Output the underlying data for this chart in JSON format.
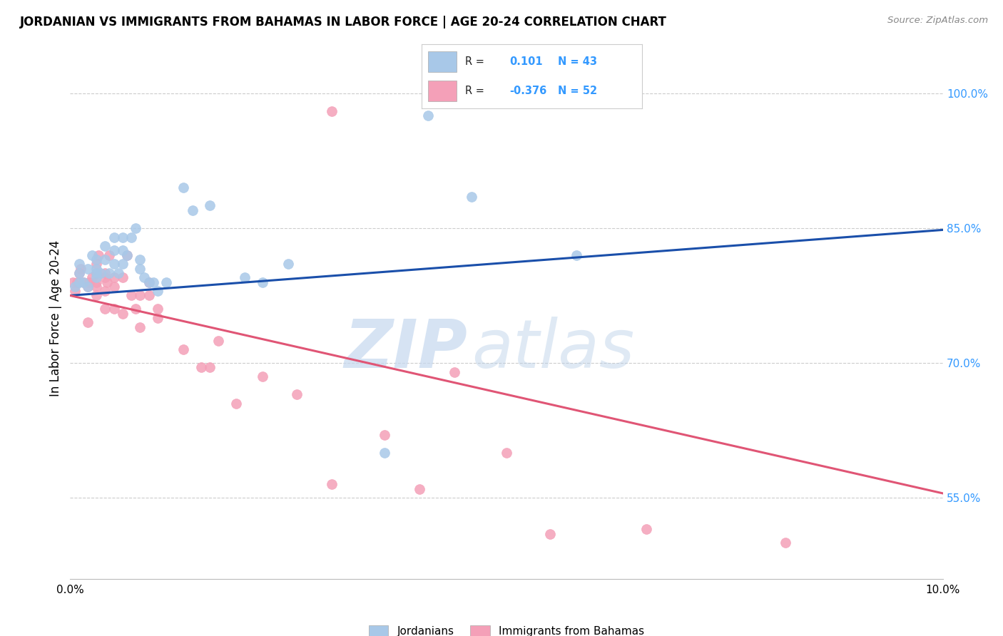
{
  "title": "JORDANIAN VS IMMIGRANTS FROM BAHAMAS IN LABOR FORCE | AGE 20-24 CORRELATION CHART",
  "source": "Source: ZipAtlas.com",
  "ylabel": "In Labor Force | Age 20-24",
  "xlim": [
    0.0,
    0.1
  ],
  "ylim": [
    0.46,
    1.04
  ],
  "yticks": [
    0.55,
    0.7,
    0.85,
    1.0
  ],
  "ytick_labels": [
    "55.0%",
    "70.0%",
    "85.0%",
    "100.0%"
  ],
  "xticks": [
    0.0,
    0.02,
    0.04,
    0.06,
    0.08,
    0.1
  ],
  "xtick_labels": [
    "0.0%",
    "",
    "",
    "",
    "",
    "10.0%"
  ],
  "r_jordanian": 0.101,
  "n_jordanian": 43,
  "r_bahamas": -0.376,
  "n_bahamas": 52,
  "jordanian_color": "#a8c8e8",
  "bahamas_color": "#f4a0b8",
  "trend_jordanian_color": "#1a4faa",
  "trend_bahamas_color": "#e05575",
  "jordanian_x": [
    0.0005,
    0.001,
    0.001,
    0.001,
    0.0015,
    0.002,
    0.002,
    0.0025,
    0.003,
    0.003,
    0.003,
    0.003,
    0.0035,
    0.004,
    0.004,
    0.0045,
    0.005,
    0.005,
    0.005,
    0.0055,
    0.006,
    0.006,
    0.006,
    0.0065,
    0.007,
    0.0075,
    0.008,
    0.008,
    0.0085,
    0.009,
    0.0095,
    0.01,
    0.011,
    0.013,
    0.014,
    0.016,
    0.02,
    0.022,
    0.025,
    0.036,
    0.041,
    0.046,
    0.058
  ],
  "jordanian_y": [
    0.785,
    0.79,
    0.8,
    0.81,
    0.79,
    0.785,
    0.805,
    0.82,
    0.795,
    0.8,
    0.805,
    0.815,
    0.8,
    0.815,
    0.83,
    0.8,
    0.81,
    0.825,
    0.84,
    0.8,
    0.81,
    0.825,
    0.84,
    0.82,
    0.84,
    0.85,
    0.805,
    0.815,
    0.795,
    0.79,
    0.79,
    0.78,
    0.79,
    0.895,
    0.87,
    0.875,
    0.795,
    0.79,
    0.81,
    0.6,
    0.975,
    0.885,
    0.82
  ],
  "bahamas_x": [
    0.0003,
    0.0005,
    0.0008,
    0.001,
    0.0012,
    0.0015,
    0.002,
    0.002,
    0.0022,
    0.0025,
    0.003,
    0.003,
    0.003,
    0.003,
    0.003,
    0.0032,
    0.004,
    0.004,
    0.004,
    0.004,
    0.0042,
    0.0045,
    0.005,
    0.005,
    0.005,
    0.006,
    0.006,
    0.0065,
    0.007,
    0.0075,
    0.008,
    0.008,
    0.009,
    0.009,
    0.01,
    0.01,
    0.013,
    0.015,
    0.016,
    0.017,
    0.019,
    0.022,
    0.026,
    0.03,
    0.03,
    0.036,
    0.04,
    0.044,
    0.05,
    0.055,
    0.066,
    0.082
  ],
  "bahamas_y": [
    0.79,
    0.78,
    0.79,
    0.8,
    0.805,
    0.79,
    0.745,
    0.785,
    0.79,
    0.795,
    0.79,
    0.8,
    0.81,
    0.785,
    0.775,
    0.82,
    0.78,
    0.795,
    0.8,
    0.76,
    0.79,
    0.82,
    0.795,
    0.785,
    0.76,
    0.755,
    0.795,
    0.82,
    0.775,
    0.76,
    0.775,
    0.74,
    0.775,
    0.79,
    0.75,
    0.76,
    0.715,
    0.695,
    0.695,
    0.725,
    0.655,
    0.685,
    0.665,
    0.98,
    0.565,
    0.62,
    0.56,
    0.69,
    0.6,
    0.51,
    0.515,
    0.5
  ],
  "trend_j_x0": 0.0,
  "trend_j_y0": 0.775,
  "trend_j_x1": 0.1,
  "trend_j_y1": 0.848,
  "trend_b_x0": 0.0,
  "trend_b_y0": 0.775,
  "trend_b_x1": 0.1,
  "trend_b_y1": 0.555,
  "background_color": "#ffffff",
  "grid_color": "#cccccc"
}
